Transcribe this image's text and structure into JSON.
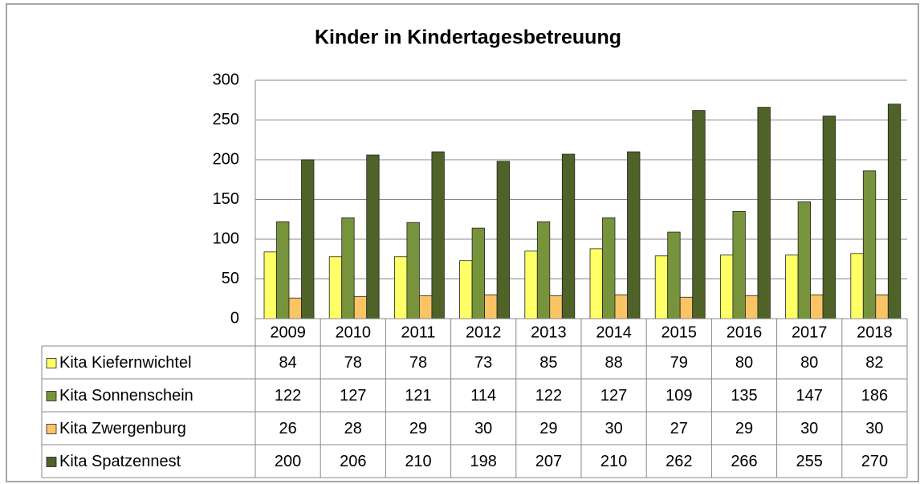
{
  "chart_data": {
    "type": "bar",
    "title": "Kinder in Kindertagesbetreuung",
    "categories": [
      "2009",
      "2010",
      "2011",
      "2012",
      "2013",
      "2014",
      "2015",
      "2016",
      "2017",
      "2018"
    ],
    "series": [
      {
        "name": "Kita Kiefernwichtel",
        "color": "#ffff66",
        "values": [
          84,
          78,
          78,
          73,
          85,
          88,
          79,
          80,
          80,
          82
        ]
      },
      {
        "name": "Kita Sonnenschein",
        "color": "#77933c",
        "values": [
          122,
          127,
          121,
          114,
          122,
          127,
          109,
          135,
          147,
          186
        ]
      },
      {
        "name": "Kita Zwergenburg",
        "color": "#fac465",
        "values": [
          26,
          28,
          29,
          30,
          29,
          30,
          27,
          29,
          30,
          30
        ]
      },
      {
        "name": "Kita Spatzennest",
        "color": "#4f6228",
        "values": [
          200,
          206,
          210,
          198,
          207,
          210,
          262,
          266,
          255,
          270
        ]
      }
    ],
    "ylim": [
      0,
      300
    ],
    "yticks": [
      0,
      50,
      100,
      150,
      200,
      250,
      300
    ],
    "grid": true
  }
}
